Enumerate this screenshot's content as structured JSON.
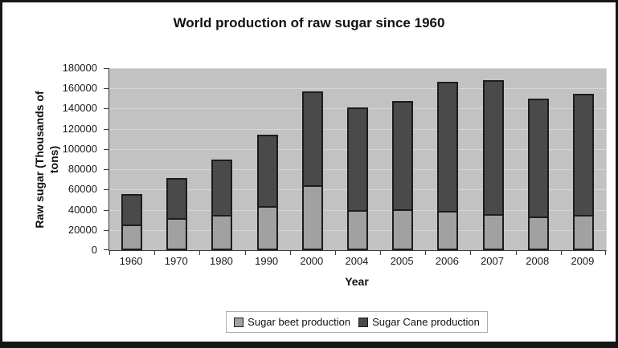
{
  "frame": {
    "background": "#ffffff",
    "border_color": "#161616"
  },
  "chart_data": {
    "type": "bar",
    "stacked": true,
    "title": "World production of raw sugar since 1960",
    "xlabel": "Year",
    "ylabel": "Raw sugar (Thousands of tons)",
    "ylabel_lines": [
      "Raw sugar (Thousands of",
      "tons)"
    ],
    "categories": [
      "1960",
      "1970",
      "1980",
      "1990",
      "2000",
      "2004",
      "2005",
      "2006",
      "2007",
      "2008",
      "2009"
    ],
    "series": [
      {
        "name": "Sugar beet production",
        "color": "#a1a1a1",
        "values": [
          24000,
          30000,
          33000,
          42000,
          63000,
          38000,
          39000,
          37000,
          34000,
          32000,
          33000
        ]
      },
      {
        "name": "Sugar Cane production",
        "color": "#4a4a4a",
        "values": [
          32000,
          41000,
          56000,
          72000,
          94000,
          103000,
          109000,
          129000,
          134000,
          118000,
          121000
        ]
      }
    ],
    "totals": [
      56000,
      71000,
      89000,
      114000,
      157000,
      141000,
      148000,
      166000,
      168000,
      150000,
      154000
    ],
    "ylim": [
      0,
      180000
    ],
    "ytick_step": 20000,
    "yticks": [
      0,
      20000,
      40000,
      60000,
      80000,
      100000,
      120000,
      140000,
      160000,
      180000
    ],
    "grid": true,
    "legend_position": "bottom",
    "plot_bg": "#c2c2c2",
    "gridline_color": "#d7d7d7",
    "axis_color": "#3c3c3c",
    "bar_border_color": "#1c1c1c",
    "legend_border_color": "#aeaeae"
  }
}
